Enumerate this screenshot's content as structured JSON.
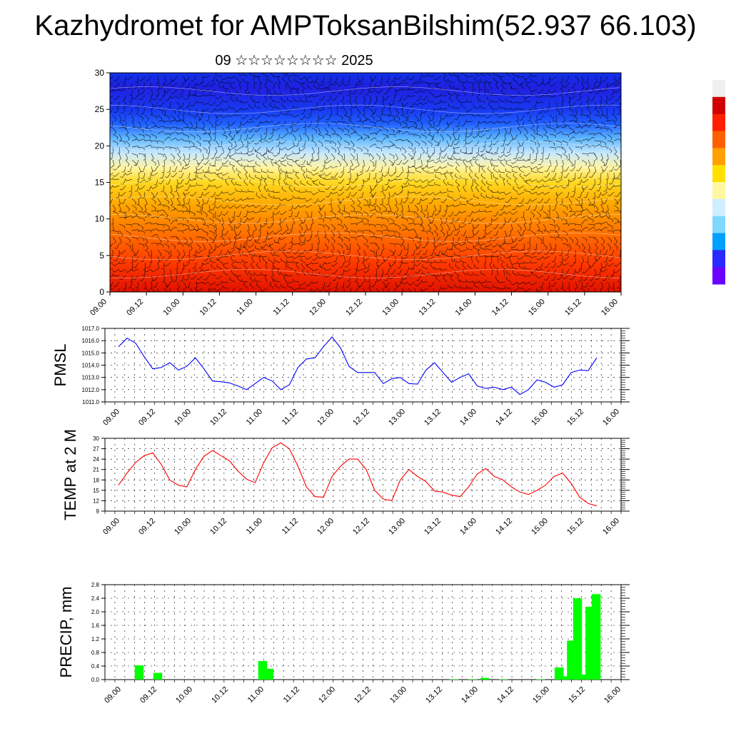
{
  "header": {
    "title": "Kazhydromet for AMPToksanBilshim(52.937 66.103)",
    "subtitle": "09 ☆☆☆☆☆☆☆☆ 2025"
  },
  "colors": {
    "pmsl_line": "#0000ff",
    "temp_line": "#ff0000",
    "precip_bar": "#00ff00",
    "grid": "#000000",
    "colorbar": [
      "#6a00ff",
      "#2a2aff",
      "#00a0ff",
      "#7fd8ff",
      "#cfeeff",
      "#fff8a0",
      "#ffe000",
      "#ffa000",
      "#ff6000",
      "#ff2000",
      "#d00000",
      "#f0f0f0"
    ]
  },
  "chart_data": [
    {
      "id": "cross-section",
      "type": "heatmap",
      "title": "",
      "ylim": [
        0,
        30
      ],
      "yticks": [
        "0",
        "5",
        "10",
        "15",
        "20",
        "25",
        "30"
      ],
      "xticks": [
        "09.00",
        "09.12",
        "10.00",
        "10.12",
        "11.00",
        "11.12",
        "12.00",
        "12.12",
        "13.00",
        "13.12",
        "14.00",
        "14.12",
        "15.00",
        "15.12",
        "16.00"
      ],
      "levels": [
        0,
        4,
        8,
        12,
        15,
        17,
        19,
        21,
        23,
        25,
        28,
        30
      ],
      "level_colors": [
        "#e01000",
        "#ff3a00",
        "#ff7000",
        "#ffa800",
        "#ffd820",
        "#fff4a0",
        "#c8e8ff",
        "#60b8ff",
        "#2060ff",
        "#1838f0",
        "#2020e0",
        "#1030e8"
      ],
      "wind_barbs": true
    },
    {
      "id": "pmsl",
      "type": "line",
      "ylabel": "PMSL",
      "ylim": [
        1011.0,
        1017.0
      ],
      "yticks": [
        "1011.0",
        "1012.0",
        "1013.0",
        "1014.0",
        "1015.0",
        "1016.0",
        "1017.0"
      ],
      "xticks": [
        "09.00",
        "09.12",
        "10.00",
        "10.12",
        "11.00",
        "11.12",
        "12.00",
        "12.12",
        "13.00",
        "13.12",
        "14.00",
        "14.12",
        "15.00",
        "15.12",
        "16.00"
      ],
      "series": [
        {
          "values": [
            1015.5,
            1016.2,
            1015.8,
            1014.7,
            1013.7,
            1013.8,
            1014.2,
            1013.6,
            1013.9,
            1014.6,
            1013.7,
            1012.7,
            1012.65,
            1012.55,
            1012.3,
            1012.0,
            1012.5,
            1013.0,
            1012.7,
            1012.0,
            1012.4,
            1013.8,
            1014.5,
            1014.6,
            1015.5,
            1016.3,
            1015.4,
            1013.9,
            1013.4,
            1013.4,
            1013.4,
            1012.5,
            1012.9,
            1013.0,
            1012.5,
            1012.45,
            1013.6,
            1014.2,
            1013.4,
            1012.6,
            1013.0,
            1013.3,
            1012.3,
            1012.1,
            1012.2,
            1012.0,
            1012.2,
            1011.6,
            1012.0,
            1012.8,
            1012.6,
            1012.2,
            1012.4,
            1013.4,
            1013.6,
            1013.55,
            1014.6
          ]
        }
      ]
    },
    {
      "id": "temp2m",
      "type": "line",
      "ylabel": "TEMP at 2 M",
      "ylim": [
        9,
        30
      ],
      "yticks": [
        "9",
        "12",
        "15",
        "18",
        "21",
        "24",
        "27",
        "30"
      ],
      "xticks": [
        "09.00",
        "09.12",
        "10.00",
        "10.12",
        "11.00",
        "11.12",
        "12.00",
        "12.12",
        "13.00",
        "13.12",
        "14.00",
        "14.12",
        "15.00",
        "15.12",
        "16.00"
      ],
      "series": [
        {
          "values": [
            16.5,
            20.0,
            23.0,
            25.0,
            25.8,
            22.5,
            18.0,
            16.5,
            16.0,
            21.0,
            24.8,
            26.5,
            25.0,
            23.5,
            20.5,
            18.2,
            17.2,
            23.0,
            27.3,
            28.7,
            27.0,
            22.0,
            16.0,
            13.2,
            13.0,
            19.0,
            22.0,
            24.0,
            24.0,
            21.0,
            15.0,
            12.5,
            12.0,
            18.0,
            21.0,
            19.0,
            17.5,
            14.8,
            14.5,
            13.6,
            13.2,
            16.0,
            19.7,
            21.3,
            19.0,
            18.0,
            16.0,
            14.5,
            13.8,
            15.0,
            16.5,
            19.0,
            20.0,
            17.0,
            13.0,
            11.2,
            10.5
          ]
        }
      ]
    },
    {
      "id": "precip",
      "type": "bar",
      "ylabel": "PRECIP, mm",
      "ylim": [
        0.0,
        2.8
      ],
      "yticks": [
        "0.0",
        "0.4",
        "0.8",
        "1.2",
        "1.6",
        "2.0",
        "2.4",
        "2.8"
      ],
      "xticks": [
        "09.00",
        "09.12",
        "10.00",
        "10.12",
        "11.00",
        "11.12",
        "12.00",
        "12.12",
        "13.00",
        "13.12",
        "14.00",
        "14.12",
        "15.00",
        "15.12",
        "16.00"
      ],
      "values": [
        0,
        0,
        0,
        0.42,
        0,
        0,
        0.2,
        0,
        0,
        0,
        0,
        0,
        0,
        0,
        0,
        0,
        0,
        0,
        0,
        0,
        0,
        0,
        0,
        0.55,
        0.32,
        0,
        0,
        0,
        0,
        0,
        0,
        0,
        0,
        0,
        0,
        0,
        0,
        0,
        0,
        0,
        0,
        0,
        0,
        0,
        0,
        0,
        0,
        0,
        0,
        0,
        0,
        0,
        0,
        0,
        0.01,
        0,
        0,
        0.01,
        0,
        0.05,
        0,
        0,
        0.01,
        0,
        0,
        0,
        0,
        0,
        0.01,
        0,
        0,
        0.36,
        0.1,
        1.15,
        2.4,
        0.15,
        2.15,
        2.52
      ]
    }
  ]
}
